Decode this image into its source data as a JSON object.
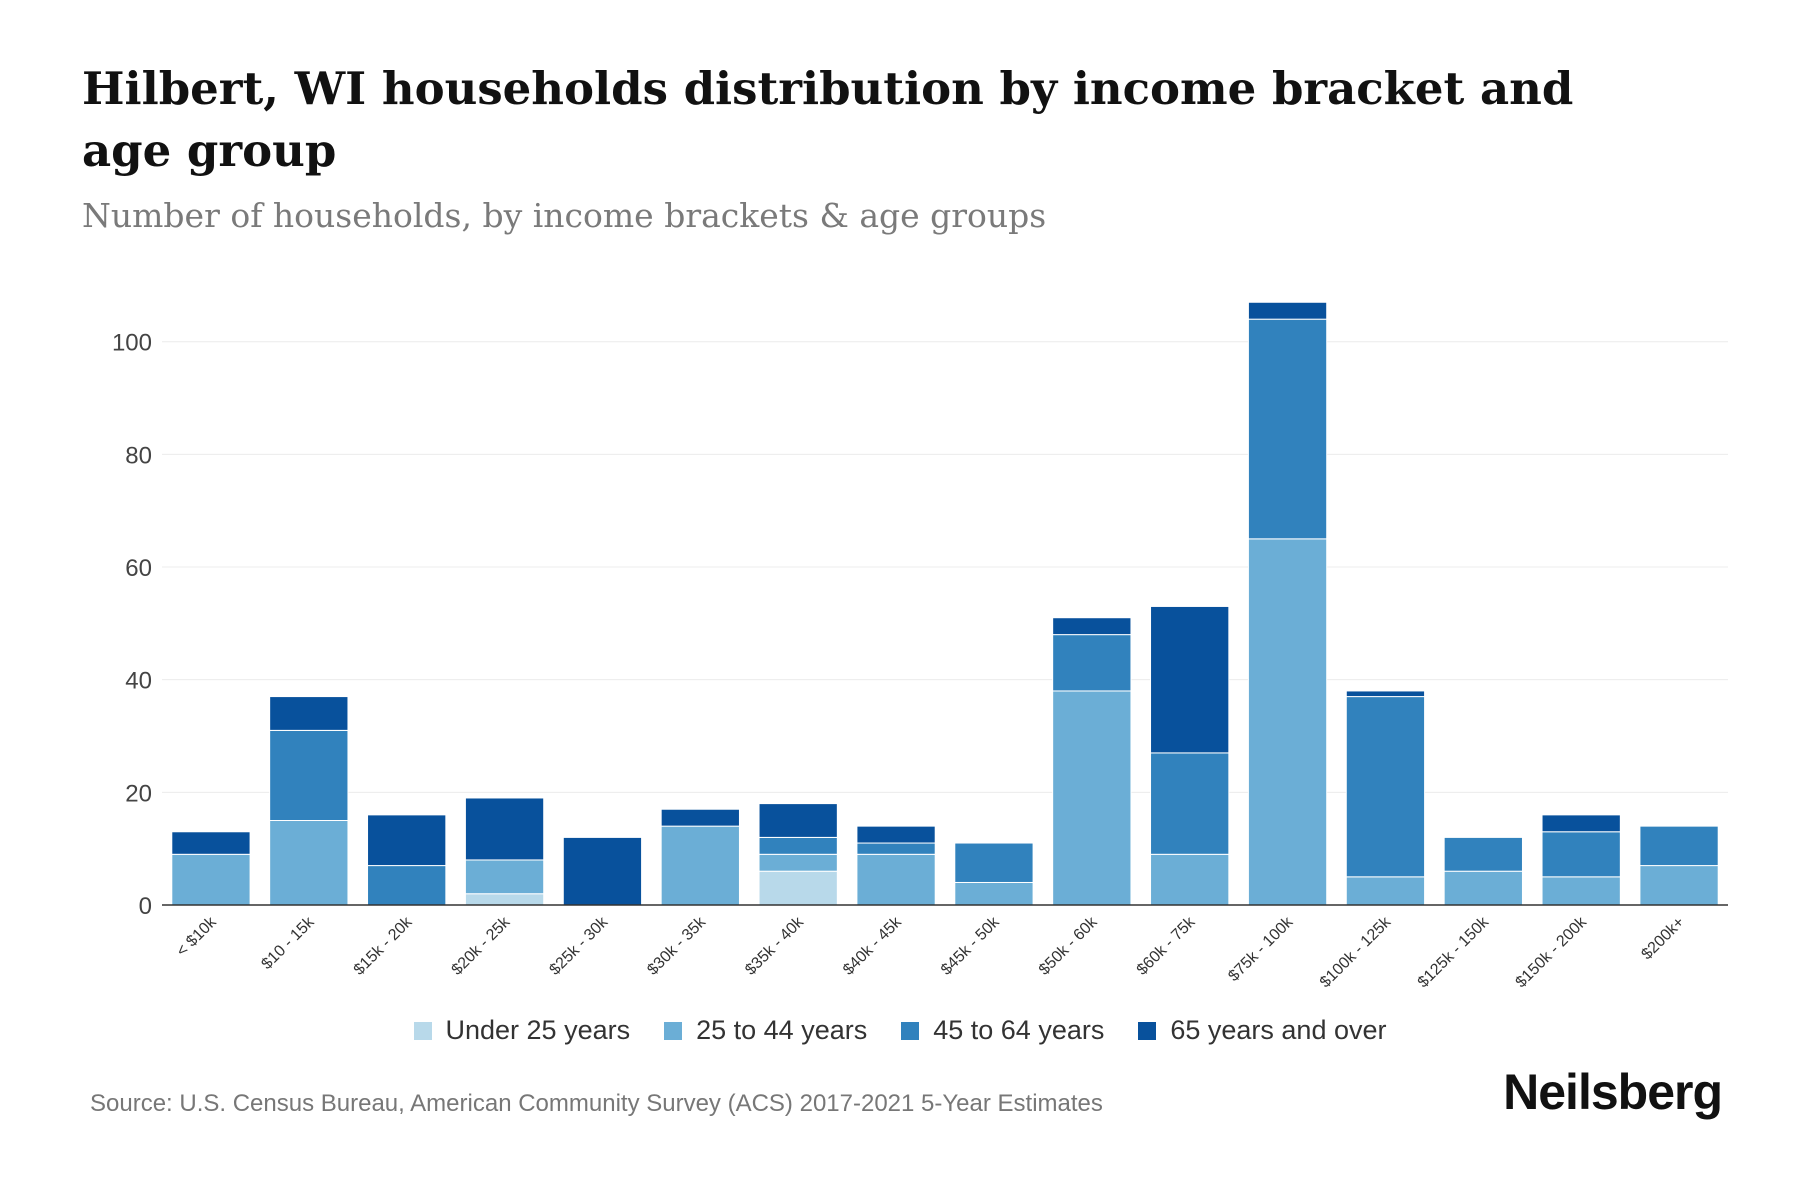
{
  "chart_data": {
    "type": "bar",
    "stacked": true,
    "title": "Hilbert, WI households distribution by income bracket and age group",
    "subtitle": "Number of households, by income brackets & age groups",
    "xlabel": "",
    "ylabel": "",
    "ylim": [
      0,
      110
    ],
    "yticks": [
      0,
      20,
      40,
      60,
      80,
      100
    ],
    "grid": true,
    "categories": [
      "< $10k",
      "$10 - 15k",
      "$15k - 20k",
      "$20k - 25k",
      "$25k - 30k",
      "$30k - 35k",
      "$35k - 40k",
      "$40k - 45k",
      "$45k - 50k",
      "$50k - 60k",
      "$60k - 75k",
      "$75k - 100k",
      "$100k - 125k",
      "$125k - 150k",
      "$150k - 200k",
      "$200k+"
    ],
    "series": [
      {
        "name": "Under 25 years",
        "color": "#b8d9ea",
        "values": [
          0,
          0,
          0,
          2,
          0,
          0,
          6,
          0,
          0,
          0,
          0,
          0,
          0,
          0,
          0,
          0
        ]
      },
      {
        "name": "25 to 44 years",
        "color": "#6baed6",
        "values": [
          9,
          15,
          0,
          6,
          0,
          14,
          3,
          9,
          4,
          38,
          9,
          65,
          5,
          6,
          5,
          7
        ]
      },
      {
        "name": "45 to 64 years",
        "color": "#3182bd",
        "values": [
          0,
          16,
          7,
          0,
          0,
          0,
          3,
          2,
          7,
          10,
          18,
          39,
          32,
          6,
          8,
          7
        ]
      },
      {
        "name": "65 years and over",
        "color": "#08519c",
        "values": [
          4,
          6,
          9,
          11,
          12,
          3,
          6,
          3,
          0,
          3,
          26,
          3,
          1,
          0,
          3,
          0
        ]
      }
    ],
    "legend_position": "bottom"
  },
  "source": "Source: U.S. Census Bureau, American Community Survey (ACS) 2017-2021 5-Year Estimates",
  "brand": "Neilsberg"
}
